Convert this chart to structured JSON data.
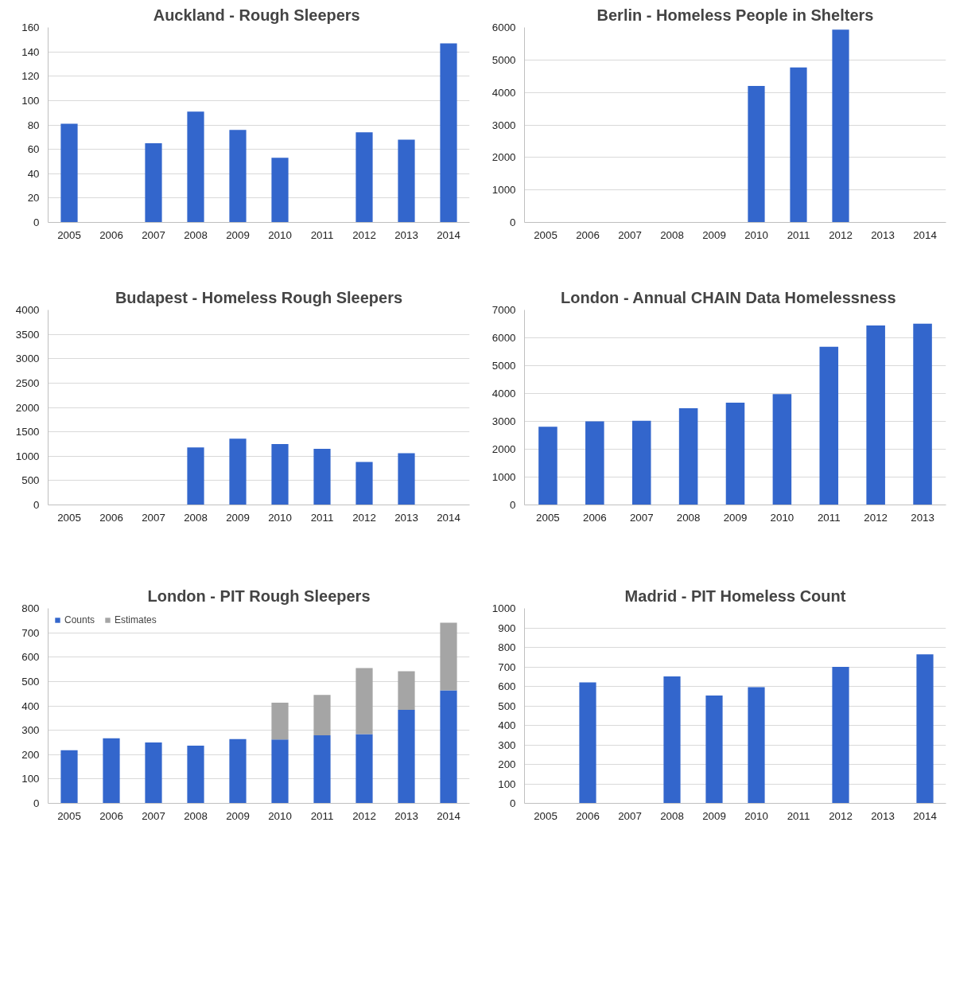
{
  "chart_data": [
    {
      "type": "bar",
      "title": "Auckland  - Rough Sleepers",
      "categories": [
        "2005",
        "2006",
        "2007",
        "2008",
        "2009",
        "2010",
        "2011",
        "2012",
        "2013",
        "2014"
      ],
      "series": [
        {
          "color": "#3366cc",
          "values": [
            81,
            null,
            65,
            91,
            76,
            53,
            null,
            74,
            68,
            147
          ]
        }
      ],
      "ylim": [
        0,
        160
      ],
      "yticks": [
        0,
        20,
        40,
        60,
        80,
        100,
        120,
        140,
        160
      ],
      "grid": "y"
    },
    {
      "type": "bar",
      "title": "Berlin - Homeless People in Shelters",
      "categories": [
        "2005",
        "2006",
        "2007",
        "2008",
        "2009",
        "2010",
        "2011",
        "2012",
        "2013",
        "2014"
      ],
      "series": [
        {
          "color": "#3366cc",
          "values": [
            null,
            null,
            null,
            null,
            null,
            4200,
            4770,
            5930,
            null,
            null
          ]
        }
      ],
      "ylim": [
        0,
        6000
      ],
      "yticks": [
        0,
        1000,
        2000,
        3000,
        4000,
        5000,
        6000
      ],
      "grid": "y"
    },
    {
      "type": "bar",
      "title": "Budapest - Homeless Rough Sleepers",
      "categories": [
        "2005",
        "2006",
        "2007",
        "2008",
        "2009",
        "2010",
        "2011",
        "2012",
        "2013",
        "2014"
      ],
      "series": [
        {
          "color": "#3366cc",
          "values": [
            null,
            null,
            null,
            1180,
            1360,
            1250,
            1150,
            880,
            1060,
            null
          ]
        }
      ],
      "ylim": [
        0,
        4000
      ],
      "yticks": [
        0,
        500,
        1000,
        1500,
        2000,
        2500,
        3000,
        3500,
        4000
      ],
      "grid": "y"
    },
    {
      "type": "bar",
      "title": "London  - Annual  CHAIN  Data Homelessness",
      "categories": [
        "2005",
        "2006",
        "2007",
        "2008",
        "2009",
        "2010",
        "2011",
        "2012",
        "2013"
      ],
      "series": [
        {
          "color": "#3366cc",
          "values": [
            2810,
            3000,
            3020,
            3470,
            3670,
            3980,
            5680,
            6440,
            6510
          ]
        }
      ],
      "ylim": [
        0,
        7000
      ],
      "yticks": [
        0,
        1000,
        2000,
        3000,
        4000,
        5000,
        6000,
        7000
      ],
      "grid": "y"
    },
    {
      "type": "bar",
      "title": "London - PIT Rough Sleepers",
      "categories": [
        "2005",
        "2006",
        "2007",
        "2008",
        "2009",
        "2010",
        "2011",
        "2012",
        "2013",
        "2014"
      ],
      "stacked": true,
      "series": [
        {
          "name": "Counts",
          "color": "#3366cc",
          "values": [
            218,
            267,
            250,
            237,
            264,
            262,
            279,
            284,
            384,
            464
          ]
        },
        {
          "name": "Estimates",
          "color": "#a5a5a5",
          "values": [
            null,
            null,
            null,
            null,
            null,
            151,
            166,
            271,
            158,
            277
          ]
        }
      ],
      "ylim": [
        0,
        800
      ],
      "yticks": [
        0,
        100,
        200,
        300,
        400,
        500,
        600,
        700,
        800
      ],
      "grid": "y",
      "legend": "top left"
    },
    {
      "type": "bar",
      "title": "Madrid - PIT Homeless Count",
      "categories": [
        "2005",
        "2006",
        "2007",
        "2008",
        "2009",
        "2010",
        "2011",
        "2012",
        "2013",
        "2014"
      ],
      "series": [
        {
          "color": "#3366cc",
          "values": [
            null,
            620,
            null,
            651,
            553,
            596,
            null,
            700,
            null,
            764
          ]
        }
      ],
      "ylim": [
        0,
        1000
      ],
      "yticks": [
        0,
        100,
        200,
        300,
        400,
        500,
        600,
        700,
        800,
        900,
        1000
      ],
      "grid": "y"
    }
  ]
}
